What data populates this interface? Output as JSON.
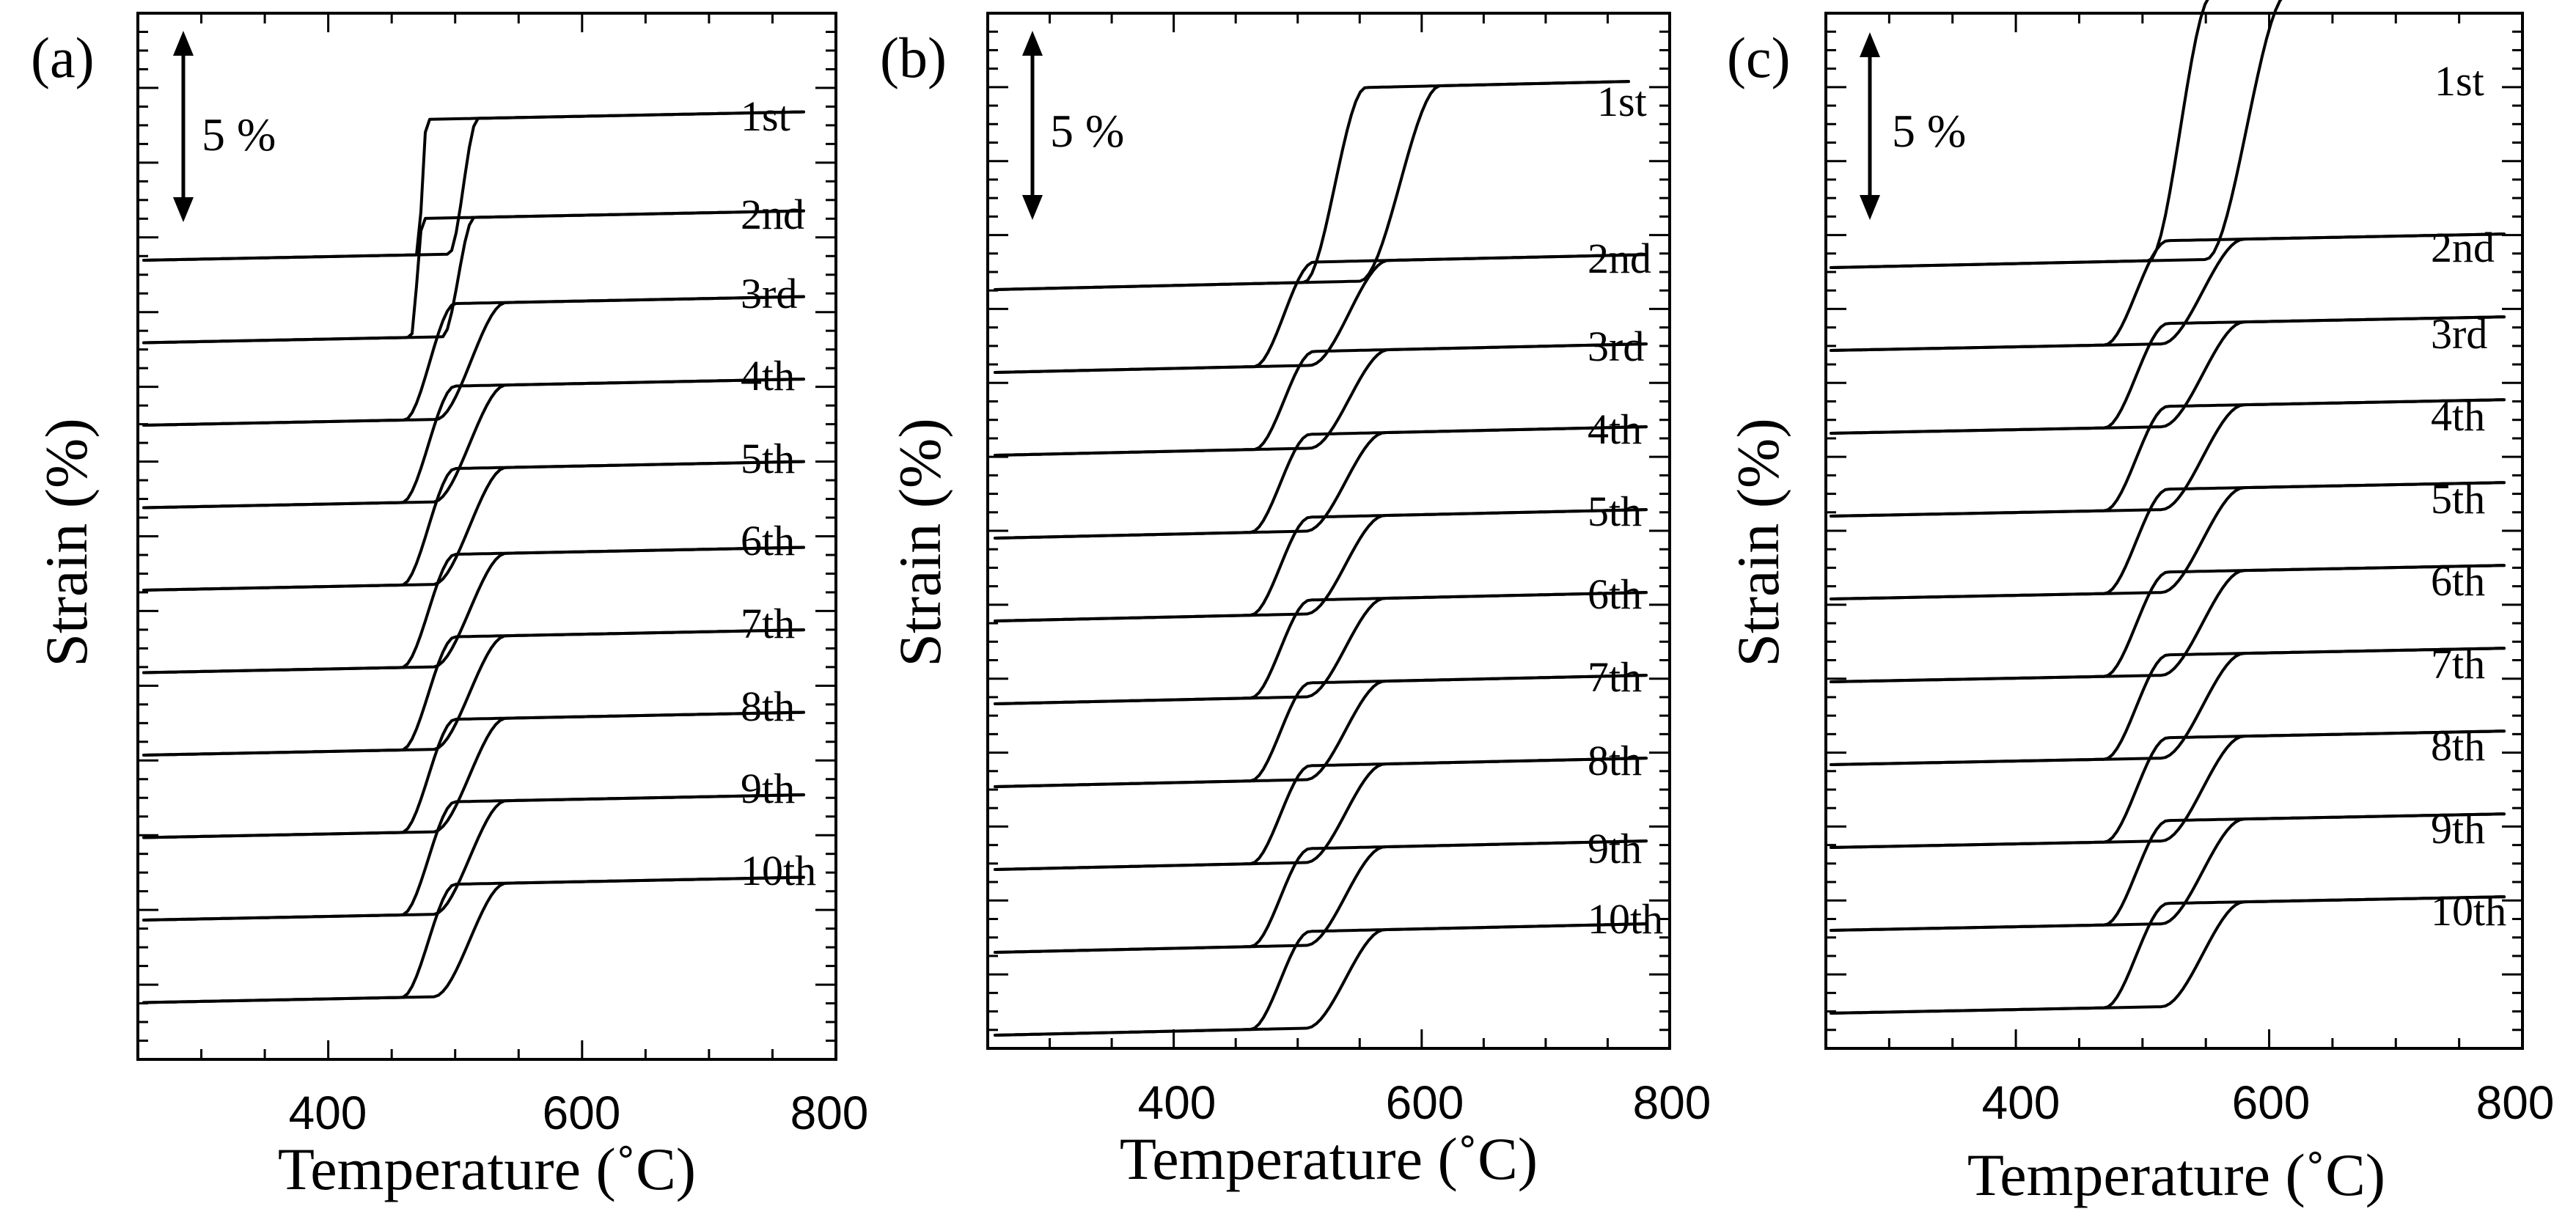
{
  "chart_data": [
    {
      "type": "line",
      "panel_label": "(a)",
      "xlabel": "Temperature (˚C)",
      "ylabel": "Strain (%)",
      "xlim": [
        250,
        800
      ],
      "xticks": [
        400,
        600,
        800
      ],
      "tick_labels": [
        "400",
        "600",
        "800"
      ],
      "scale_bar": {
        "label": "5 %",
        "value_percent": 5
      },
      "transition_start_c": [
        470,
        465,
        460,
        458,
        458,
        458,
        458,
        458,
        458,
        458
      ],
      "transition_width_c": [
        8,
        10,
        40,
        42,
        42,
        42,
        42,
        42,
        42,
        42
      ],
      "recovery_strain_percent": [
        4.1,
        3.6,
        3.5,
        3.5,
        3.5,
        3.4,
        3.4,
        3.4,
        3.4,
        3.4
      ],
      "series": [
        {
          "name": "1st",
          "label": "1st"
        },
        {
          "name": "2nd",
          "label": "2nd"
        },
        {
          "name": "3rd",
          "label": "3rd"
        },
        {
          "name": "4th",
          "label": "4th"
        },
        {
          "name": "5th",
          "label": "5th"
        },
        {
          "name": "6th",
          "label": "6th"
        },
        {
          "name": "7th",
          "label": "7th"
        },
        {
          "name": "8th",
          "label": "8th"
        },
        {
          "name": "9th",
          "label": "9th"
        },
        {
          "name": "10th",
          "label": "10th"
        }
      ]
    },
    {
      "type": "line",
      "panel_label": "(b)",
      "xlabel": "Temperature (˚C)",
      "ylabel": "Strain (%)",
      "xlim": [
        250,
        800
      ],
      "xticks": [
        400,
        600,
        800
      ],
      "tick_labels": [
        "400",
        "600",
        "800"
      ],
      "scale_bar": {
        "label": "5 %",
        "value_percent": 5
      },
      "transition_start_c": [
        505,
        465,
        465,
        462,
        462,
        462,
        462,
        462,
        462,
        462
      ],
      "transition_width_c": [
        50,
        48,
        48,
        48,
        48,
        48,
        48,
        48,
        48,
        48
      ],
      "recovery_strain_percent": [
        6.0,
        3.2,
        3.0,
        3.0,
        3.0,
        3.0,
        3.0,
        3.0,
        3.0,
        3.0
      ],
      "series": [
        {
          "name": "1st",
          "label": "1st"
        },
        {
          "name": "2nd",
          "label": "2nd"
        },
        {
          "name": "3rd",
          "label": "3rd"
        },
        {
          "name": "4th",
          "label": "4th"
        },
        {
          "name": "5th",
          "label": "5th"
        },
        {
          "name": "6th",
          "label": "6th"
        },
        {
          "name": "7th",
          "label": "7th"
        },
        {
          "name": "8th",
          "label": "8th"
        },
        {
          "name": "9th",
          "label": "9th"
        },
        {
          "name": "10th",
          "label": "10th"
        }
      ]
    },
    {
      "type": "line",
      "panel_label": "(c)",
      "xlabel": "Temperature (˚C)",
      "ylabel": "Strain (%)",
      "xlim": [
        250,
        800
      ],
      "xticks": [
        400,
        600,
        800
      ],
      "tick_labels": [
        "400",
        "600",
        "800"
      ],
      "scale_bar": {
        "label": "5 %",
        "value_percent": 5
      },
      "transition_start_c": [
        505,
        470,
        470,
        470,
        470,
        470,
        470,
        470,
        470,
        470
      ],
      "transition_width_c": [
        50,
        50,
        50,
        50,
        50,
        50,
        50,
        50,
        50,
        50
      ],
      "recovery_strain_percent": [
        8.2,
        3.2,
        3.2,
        3.2,
        3.2,
        3.2,
        3.2,
        3.2,
        3.2,
        3.2
      ],
      "series": [
        {
          "name": "1st",
          "label": "1st"
        },
        {
          "name": "2nd",
          "label": "2nd"
        },
        {
          "name": "3rd",
          "label": "3rd"
        },
        {
          "name": "4th",
          "label": "4th"
        },
        {
          "name": "5th",
          "label": "5th"
        },
        {
          "name": "6th",
          "label": "6th"
        },
        {
          "name": "7th",
          "label": "7th"
        },
        {
          "name": "8th",
          "label": "8th"
        },
        {
          "name": "9th",
          "label": "9th"
        },
        {
          "name": "10th",
          "label": "10th"
        }
      ]
    }
  ]
}
